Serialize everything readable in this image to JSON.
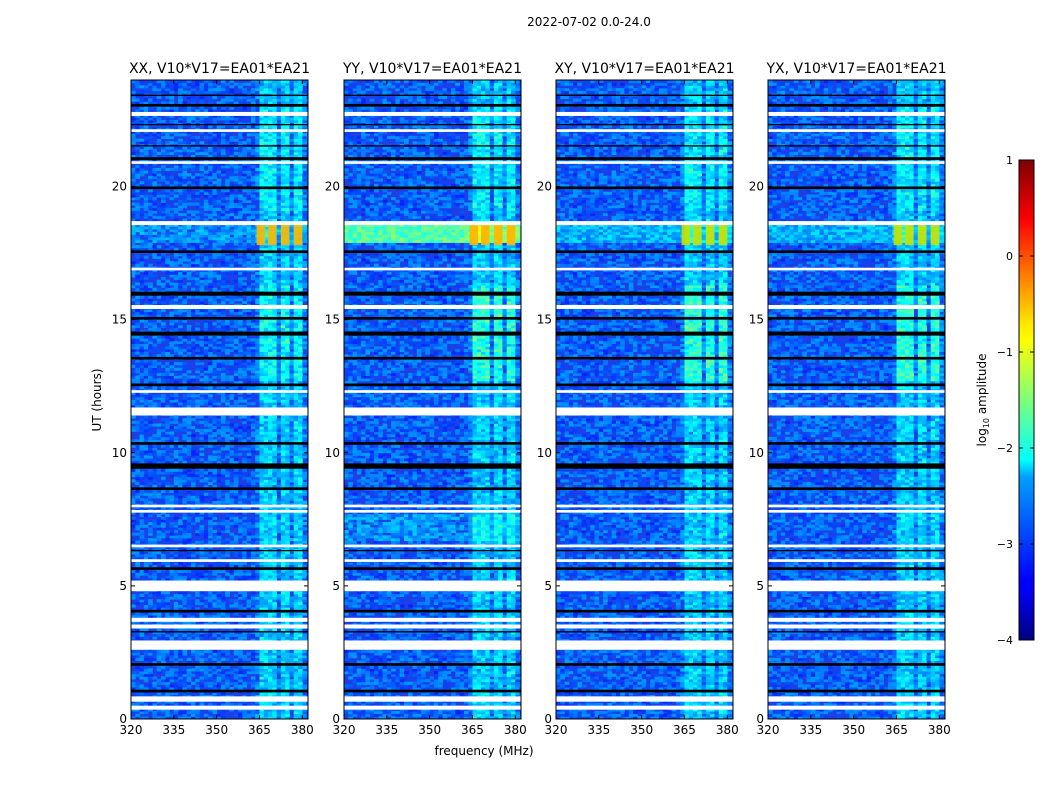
{
  "chart_data": {
    "type": "heatmap",
    "title": "2022-07-02 0.0-24.0",
    "xlabel": "frequency (MHz)",
    "ylabel": "UT (hours)",
    "xlim": [
      320,
      382
    ],
    "ylim": [
      0,
      24
    ],
    "x_ticks": [
      320,
      335,
      350,
      365,
      380
    ],
    "y_ticks": [
      0,
      5,
      10,
      15,
      20
    ],
    "panels": [
      {
        "name": "XX",
        "title": "XX, V10*V17=EA01*EA21"
      },
      {
        "name": "YY",
        "title": "YY, V10*V17=EA01*EA21"
      },
      {
        "name": "XY",
        "title": "XY, V10*V17=EA01*EA21"
      },
      {
        "name": "YX",
        "title": "YX, V10*V17=EA01*EA21"
      }
    ],
    "colorbar": {
      "label_prefix": "log",
      "label_sub": "10",
      "label_suffix": " amplitude",
      "range": [
        -4,
        1
      ],
      "ticks": [
        1,
        0,
        -1,
        -2,
        -3,
        -4
      ],
      "colormap": "jet"
    },
    "rfi_band_mhz": [
      363.5,
      380.5
    ],
    "rfi_channels_mhz": [
      [
        364,
        367
      ],
      [
        368,
        371
      ],
      [
        372.5,
        375.5
      ],
      [
        377,
        380
      ]
    ],
    "strong_rfi_hours": [
      [
        17.8,
        18.6
      ]
    ],
    "flagged_hours_white": [
      [
        0.35,
        0.5
      ],
      [
        0.65,
        0.85
      ],
      [
        2.6,
        2.8
      ],
      [
        2.8,
        2.95
      ],
      [
        3.4,
        3.55
      ],
      [
        3.65,
        3.8
      ],
      [
        4.8,
        5.2
      ],
      [
        5.9,
        6.0
      ],
      [
        6.45,
        6.55
      ],
      [
        7.75,
        7.85
      ],
      [
        7.95,
        8.05
      ],
      [
        11.4,
        11.7
      ],
      [
        12.25,
        12.35
      ],
      [
        15.4,
        15.55
      ],
      [
        16.85,
        16.95
      ],
      [
        18.55,
        18.7
      ],
      [
        20.85,
        20.95
      ],
      [
        22.05,
        22.15
      ],
      [
        22.65,
        22.8
      ]
    ],
    "flagged_hours_black": [
      [
        1.0,
        1.1
      ],
      [
        2.0,
        2.1
      ],
      [
        3.25,
        3.3
      ],
      [
        4.0,
        4.1
      ],
      [
        5.6,
        5.7
      ],
      [
        6.3,
        6.35
      ],
      [
        8.6,
        8.7
      ],
      [
        9.4,
        9.6
      ],
      [
        10.3,
        10.4
      ],
      [
        12.5,
        12.6
      ],
      [
        13.5,
        13.6
      ],
      [
        14.4,
        14.55
      ],
      [
        15.0,
        15.1
      ],
      [
        15.9,
        16.05
      ],
      [
        17.5,
        17.6
      ],
      [
        19.9,
        20.0
      ],
      [
        21.0,
        21.1
      ],
      [
        21.5,
        21.55
      ],
      [
        22.3,
        22.35
      ],
      [
        23.0,
        23.1
      ],
      [
        23.4,
        23.45
      ]
    ]
  }
}
